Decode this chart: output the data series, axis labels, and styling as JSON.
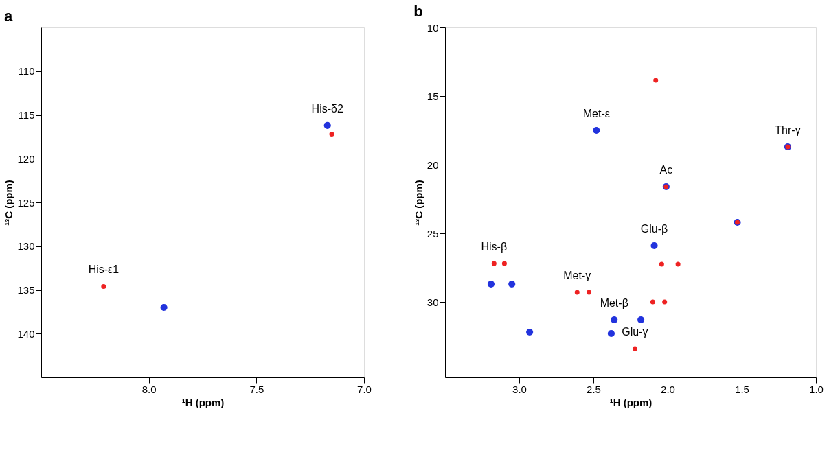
{
  "chart_data": [
    {
      "type": "scatter",
      "title": "a",
      "xlabel": "¹H (ppm)",
      "ylabel": "¹³C (ppm)",
      "xlim": [
        8.5,
        7.0
      ],
      "ylim": [
        145,
        105
      ],
      "xticks": [
        {
          "value": 8.0,
          "label": "8.0"
        },
        7.5,
        {
          "value": 7.0,
          "label": "7.0"
        }
      ],
      "yticks": [
        110,
        115,
        120,
        125,
        130,
        135,
        140
      ],
      "grid": false,
      "legend": false,
      "marker": "circle",
      "series": [
        {
          "color": "#ee2222",
          "x": [
            8.21,
            7.15
          ],
          "values": [
            134.6,
            117.2
          ]
        },
        {
          "color": "#2233dd",
          "x": [
            7.93,
            7.17
          ],
          "values": [
            137.0,
            116.2
          ]
        }
      ],
      "annotations": [
        {
          "text": "His-ε1",
          "x": 8.21,
          "y": 134.6
        },
        {
          "text": "His-δ2",
          "x": 7.17,
          "y": 116.2
        }
      ]
    },
    {
      "type": "scatter",
      "title": "b",
      "xlabel": "¹H (ppm)",
      "ylabel": "¹³C (ppm)",
      "xlim": [
        3.5,
        1.0
      ],
      "ylim": [
        35.5,
        10
      ],
      "xticks": [
        {
          "value": 3.0,
          "label": "3.0"
        },
        2.5,
        {
          "value": 2.0,
          "label": "2.0"
        },
        1.5,
        {
          "value": 1.0,
          "label": "1.0"
        }
      ],
      "yticks": [
        10,
        15,
        20,
        25,
        30
      ],
      "grid": false,
      "legend": false,
      "marker": "circle",
      "series": [
        {
          "color": "#ee2222",
          "x": [
            2.08,
            1.19,
            2.01,
            1.53,
            2.04,
            1.93,
            3.17,
            3.1,
            2.61,
            2.53,
            2.1,
            2.02,
            2.22
          ],
          "values": [
            13.85,
            18.7,
            21.6,
            24.2,
            27.25,
            27.25,
            27.2,
            27.2,
            29.3,
            29.3,
            30.0,
            30.0,
            33.4
          ]
        },
        {
          "color": "#2233dd",
          "x": [
            2.48,
            1.19,
            2.01,
            1.53,
            2.09,
            3.19,
            3.05,
            2.93,
            2.36,
            2.18,
            2.38
          ],
          "values": [
            17.5,
            18.7,
            21.6,
            24.2,
            25.9,
            28.7,
            28.7,
            32.2,
            31.3,
            31.3,
            32.3
          ]
        }
      ],
      "annotations": [
        {
          "text": "Met-ε",
          "x": 2.48,
          "y": 17.5
        },
        {
          "text": "Thr-γ",
          "x": 1.19,
          "y": 18.7
        },
        {
          "text": "Ac",
          "x": 2.01,
          "y": 21.6
        },
        {
          "text": "Glu-β",
          "x": 2.09,
          "y": 25.9
        },
        {
          "text": "His-β",
          "x": 3.17,
          "y": 27.2
        },
        {
          "text": "Met-γ",
          "x": 2.61,
          "y": 29.3
        },
        {
          "text": "Met-β",
          "x": 2.36,
          "y": 31.3
        },
        {
          "text": "Glu-γ",
          "x": 2.22,
          "y": 33.4
        }
      ]
    }
  ]
}
